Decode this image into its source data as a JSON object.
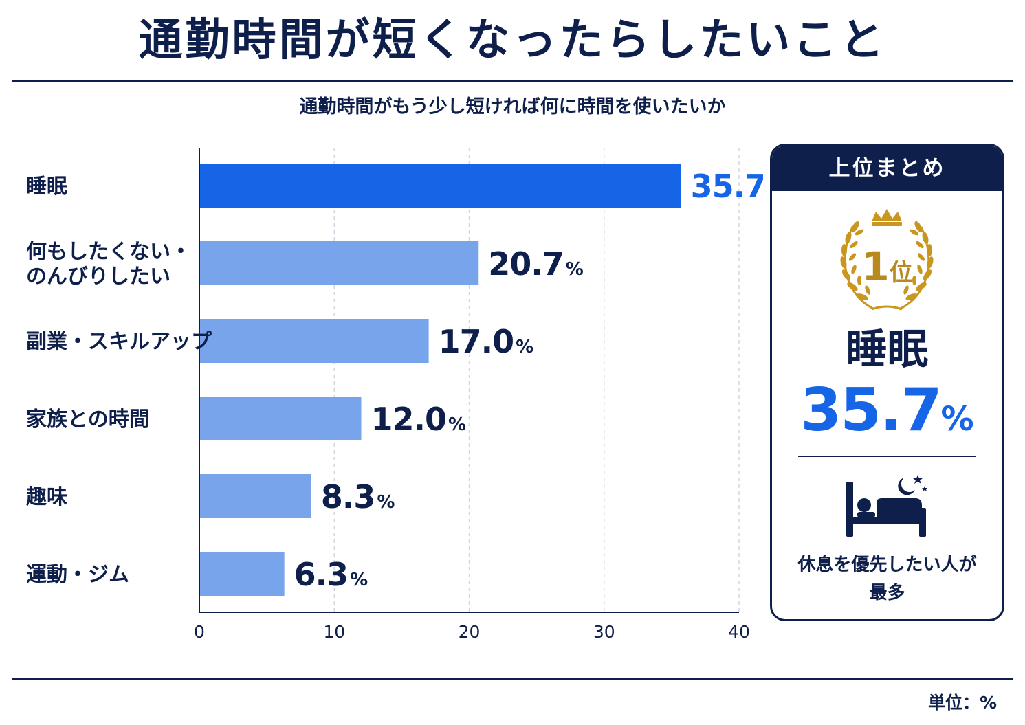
{
  "title": "通勤時間が短くなったらしたいこと",
  "subtitle": "通勤時間がもう少し短ければ何に時間を使いたいか",
  "unit_label": "単位：%",
  "colors": {
    "navy": "#0d1f4a",
    "highlight": "#1565e6",
    "bar": "#77a4ea",
    "gold": "#c9961f"
  },
  "chart_data": {
    "type": "bar",
    "orientation": "horizontal",
    "categories": [
      "睡眠",
      "何もしたくない・のんびりしたい",
      "副業・スキルアップ",
      "家族との時間",
      "趣味",
      "運動・ジム"
    ],
    "category_lines": [
      [
        "睡眠"
      ],
      [
        "何もしたくない・",
        "のんびりしたい"
      ],
      [
        "副業・スキルアップ"
      ],
      [
        "家族との時間"
      ],
      [
        "趣味"
      ],
      [
        "運動・ジム"
      ]
    ],
    "values": [
      35.7,
      20.7,
      17.0,
      12.0,
      8.3,
      6.3
    ],
    "value_labels": [
      "35.7",
      "20.7",
      "17.0",
      "12.0",
      "8.3",
      "6.3"
    ],
    "value_suffix": "%",
    "xlim": [
      0,
      40
    ],
    "xticks": [
      0,
      10,
      20,
      30,
      40
    ],
    "highlight_index": 0,
    "grid": "vertical dashed"
  },
  "summary": {
    "header": "上位まとめ",
    "rank_number": "1",
    "rank_suffix": "位",
    "item": "睡眠",
    "value_number": "35.7",
    "value_suffix": "%",
    "icon": "bed-moon-icon",
    "note_lines": [
      "休息を優先したい人が",
      "最多"
    ]
  }
}
